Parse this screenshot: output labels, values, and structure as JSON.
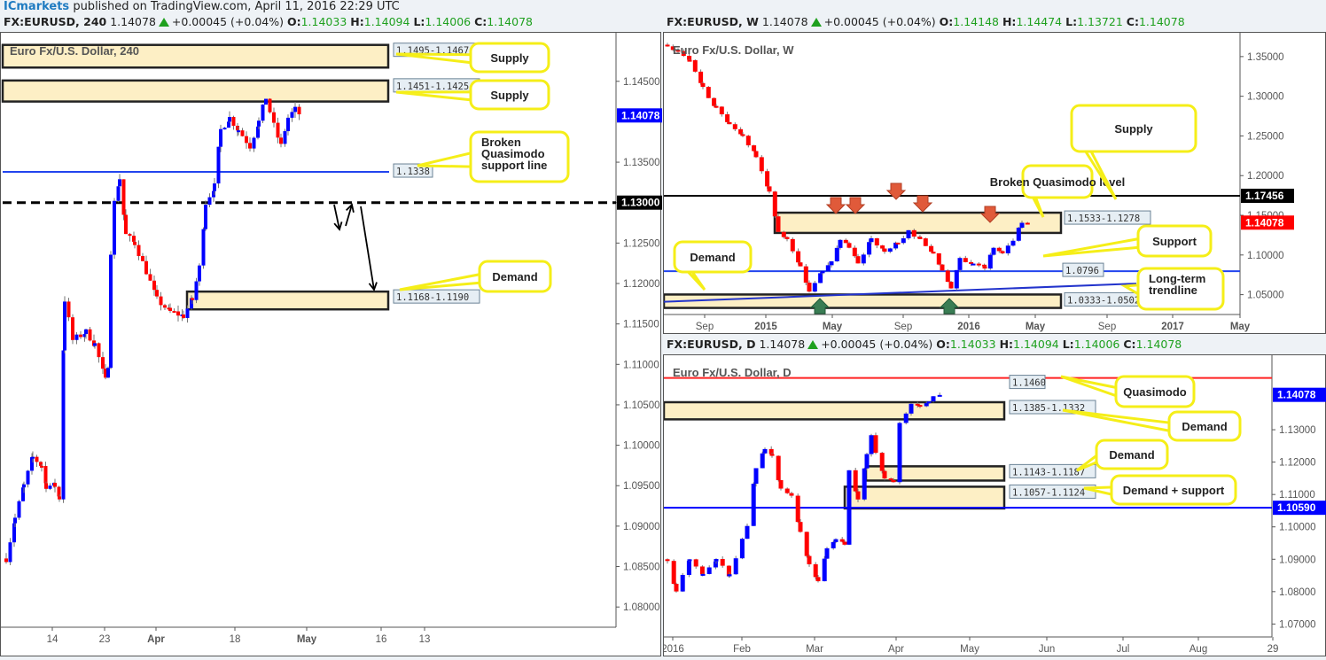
{
  "publisher": {
    "brand": "ICmarkets",
    "text": " published on TradingView.com, April 11, 2016 22:29 UTC"
  },
  "charts_meta": {
    "h4": {
      "symbol": "FX:EURUSD, 240",
      "last": "1.14078",
      "change": "+0.00045 (+0.04%)",
      "o": "1.14033",
      "h": "1.14094",
      "l": "1.14006",
      "c": "1.14078",
      "title": "Euro Fx/U.S. Dollar, 240"
    },
    "weekly": {
      "symbol": "FX:EURUSD, W",
      "last": "1.14078",
      "change": "+0.00045 (+0.04%)",
      "o": "1.14148",
      "h": "1.14474",
      "l": "1.13721",
      "c": "1.14078",
      "title": "Euro Fx/U.S. Dollar, W"
    },
    "daily": {
      "symbol": "FX:EURUSD, D",
      "last": "1.14078",
      "change": "+0.00045 (+0.04%)",
      "o": "1.14033",
      "h": "1.14094",
      "l": "1.14006",
      "c": "1.14078",
      "title": "Euro Fx/U.S. Dollar, D"
    }
  },
  "labels": {
    "o": "O:",
    "h": "H:",
    "l": "L:",
    "c": "C:"
  },
  "chart_data": [
    {
      "type": "candlestick",
      "title": "Euro Fx/U.S. Dollar, 240",
      "timeframe": "240",
      "ylim": [
        1.0775,
        1.151
      ],
      "yticks": [
        "1.14500",
        "1.13500",
        "1.13000",
        "1.12500",
        "1.12000",
        "1.11500",
        "1.11000",
        "1.10500",
        "1.10000",
        "1.09500",
        "1.09000",
        "1.08500",
        "1.08000"
      ],
      "xticks": [
        {
          "label": "14",
          "x": 58
        },
        {
          "label": "23",
          "x": 117
        },
        {
          "label": "Apr",
          "x": 175
        },
        {
          "label": "18",
          "x": 264
        },
        {
          "label": "May",
          "x": 345
        },
        {
          "label": "16",
          "x": 429
        },
        {
          "label": "13",
          "x": 478
        }
      ],
      "price_tags": [
        {
          "value": "1.14078",
          "y": 1.14078,
          "bg": "#0000ff"
        },
        {
          "value": "1.13000",
          "y": 1.13,
          "bg": "#000000"
        }
      ],
      "zones": [
        {
          "label": "1.1495-1.1467",
          "from": 1.1467,
          "to": 1.1495,
          "callout": "Supply"
        },
        {
          "label": "1.1451-1.1425",
          "from": 1.1425,
          "to": 1.1451,
          "callout": "Supply"
        },
        {
          "label": "1.1168-1.1190",
          "from": 1.1168,
          "to": 1.119,
          "callout": "Demand"
        }
      ],
      "lines": [
        {
          "label": "1.1338",
          "value": 1.1338,
          "color": "#2244ee",
          "style": "solid",
          "callout": "Broken Quasimodo support line"
        },
        {
          "label": "1.13000",
          "value": 1.13,
          "color": "#000000",
          "style": "dashed"
        }
      ],
      "annotations": [
        "Supply",
        "Supply",
        "Broken Quasimodo support line",
        "Demand"
      ]
    },
    {
      "type": "candlestick",
      "title": "Euro Fx/U.S. Dollar, W",
      "timeframe": "W",
      "ylim": [
        1.025,
        1.38
      ],
      "yticks": [
        "1.35000",
        "1.30000",
        "1.25000",
        "1.20000",
        "1.15000",
        "1.10000",
        "1.05000"
      ],
      "xticks": [
        {
          "label": "Sep",
          "x": 46
        },
        {
          "label": "2015",
          "x": 115
        },
        {
          "label": "May",
          "x": 190
        },
        {
          "label": "Sep",
          "x": 270
        },
        {
          "label": "2016",
          "x": 344
        },
        {
          "label": "May",
          "x": 419
        },
        {
          "label": "Sep",
          "x": 500
        },
        {
          "label": "2017",
          "x": 574
        },
        {
          "label": "May",
          "x": 650
        }
      ],
      "price_tags": [
        {
          "value": "1.17456",
          "y": 1.17456,
          "bg": "#000000"
        },
        {
          "value": "1.14078",
          "y": 1.14078,
          "bg": "#ff0000"
        }
      ],
      "zones": [
        {
          "label": "1.1533-1.1278",
          "from": 1.1278,
          "to": 1.1533,
          "callout": "Supply"
        },
        {
          "label": "1.0333-1.0502",
          "from": 1.0333,
          "to": 1.0502,
          "callout": "Demand"
        }
      ],
      "lines": [
        {
          "label": "1.17456",
          "value": 1.17456,
          "color": "#000000",
          "style": "solid",
          "callout": "Broken Quasimodo level"
        },
        {
          "label": "1.0796",
          "value": 1.0796,
          "color": "#2244ee",
          "style": "solid",
          "callout": "Support"
        },
        {
          "label": "Long-term trendline",
          "from": [
            1.041,
            1.064
          ],
          "color": "#2233cc",
          "style": "trend",
          "callout": "Long-term trendline"
        }
      ],
      "annotations": [
        "Broken Quasimodo level",
        "Supply",
        "Support",
        "Demand",
        "Long-term trendline"
      ]
    },
    {
      "type": "candlestick",
      "title": "Euro Fx/U.S. Dollar, D",
      "timeframe": "D",
      "ylim": [
        1.066,
        1.153
      ],
      "yticks": [
        "1.13000",
        "1.12000",
        "1.11000",
        "1.10000",
        "1.09000",
        "1.08000",
        "1.07000"
      ],
      "xticks": [
        {
          "label": "2016",
          "x": 10
        },
        {
          "label": "Feb",
          "x": 88
        },
        {
          "label": "Mar",
          "x": 170
        },
        {
          "label": "Apr",
          "x": 262
        },
        {
          "label": "May",
          "x": 345
        },
        {
          "label": "Jun",
          "x": 432
        },
        {
          "label": "Jul",
          "x": 518
        },
        {
          "label": "Aug",
          "x": 603
        },
        {
          "label": "29",
          "x": 687
        }
      ],
      "price_tags": [
        {
          "value": "1.14078",
          "y": 1.14078,
          "bg": "#0000ff"
        },
        {
          "value": "1.10590",
          "y": 1.1059,
          "bg": "#0000ff"
        }
      ],
      "zones": [
        {
          "label": "1.1385-1.1332",
          "from": 1.1332,
          "to": 1.1385,
          "callout": "Demand"
        },
        {
          "label": "1.1143-1.1187",
          "from": 1.1143,
          "to": 1.1187,
          "callout": "Demand"
        },
        {
          "label": "1.1057-1.1124",
          "from": 1.1057,
          "to": 1.1124,
          "callout": "Demand + support"
        }
      ],
      "lines": [
        {
          "label": "1.1460",
          "value": 1.146,
          "color": "#ff2222",
          "style": "solid",
          "callout": "Quasimodo"
        },
        {
          "label": "1.10590",
          "value": 1.1059,
          "color": "#0000ff",
          "style": "solid"
        }
      ],
      "annotations": [
        "Quasimodo",
        "Demand",
        "Demand",
        "Demand + support"
      ]
    }
  ]
}
